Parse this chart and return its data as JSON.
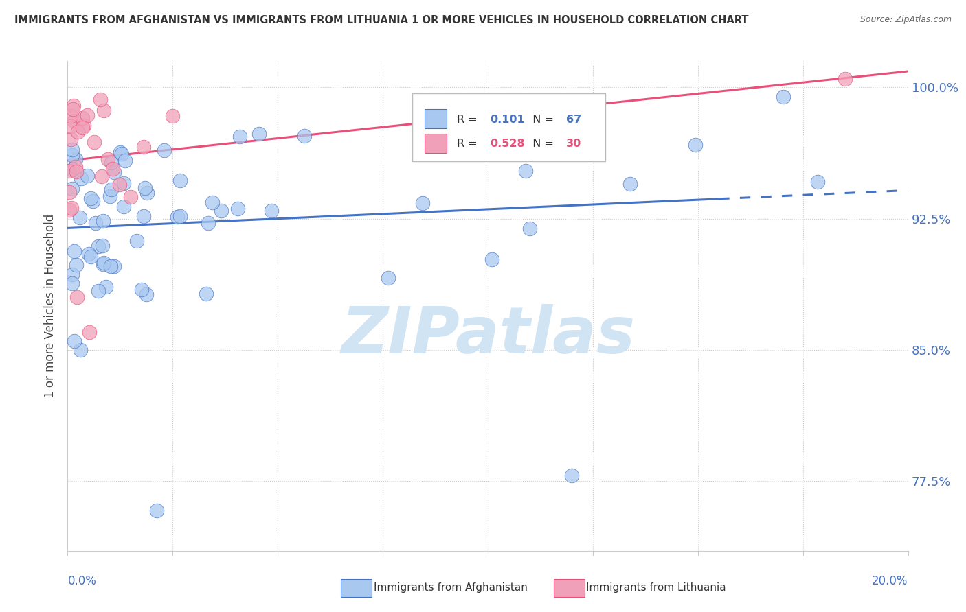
{
  "title": "IMMIGRANTS FROM AFGHANISTAN VS IMMIGRANTS FROM LITHUANIA 1 OR MORE VEHICLES IN HOUSEHOLD CORRELATION CHART",
  "source": "Source: ZipAtlas.com",
  "ylabel": "1 or more Vehicles in Household",
  "r_afghanistan": 0.101,
  "n_afghanistan": 67,
  "r_lithuania": 0.528,
  "n_lithuania": 30,
  "xlim": [
    0.0,
    0.2
  ],
  "ylim": [
    0.735,
    1.015
  ],
  "yticks": [
    0.775,
    0.85,
    0.925,
    1.0
  ],
  "ytick_labels": [
    "77.5%",
    "85.0%",
    "92.5%",
    "100.0%"
  ],
  "color_afghanistan": "#A8C8F0",
  "color_lithuania": "#F0A0B8",
  "trendline_afghanistan": "#4472C4",
  "trendline_lithuania": "#E8507A",
  "watermark_color": "#D0E4F4",
  "background_color": "#FFFFFF",
  "grid_color": "#CCCCCC",
  "title_color": "#333333",
  "source_color": "#666666",
  "axis_label_color": "#4472C4"
}
